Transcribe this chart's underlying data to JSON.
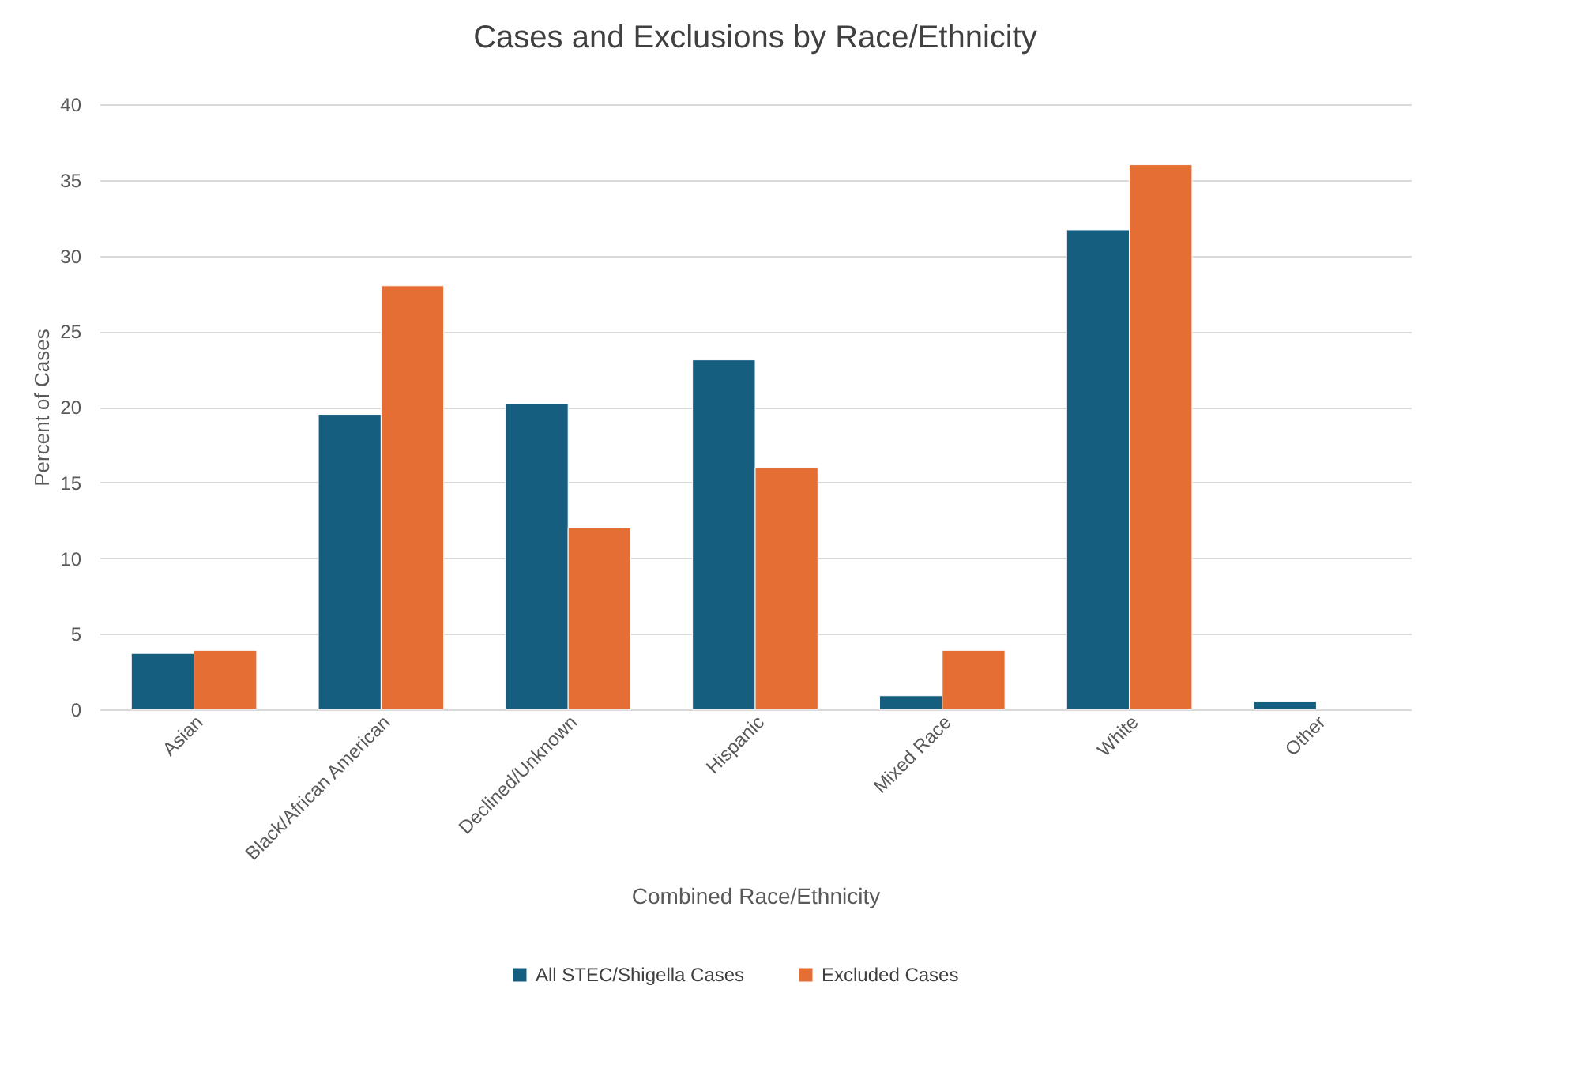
{
  "chart_data": {
    "type": "bar",
    "title": "Cases and Exclusions by Race/Ethnicity",
    "xlabel": "Combined Race/Ethnicity",
    "ylabel": "Percent of Cases",
    "categories": [
      "Asian",
      "Black/African American",
      "Declined/Unknown",
      "Hispanic",
      "Mixed Race",
      "White",
      "Other"
    ],
    "series": [
      {
        "name": "All STEC/Shigella Cases",
        "color": "#165e80",
        "values": [
          3.7,
          19.5,
          20.2,
          23.1,
          0.9,
          31.7,
          0.5
        ]
      },
      {
        "name": "Excluded Cases",
        "color": "#e46e33",
        "values": [
          3.9,
          28.0,
          12.0,
          16.0,
          3.9,
          36.0,
          null
        ]
      }
    ],
    "ylim": [
      0,
      40
    ],
    "yticks": [
      0,
      5,
      10,
      15,
      20,
      25,
      30,
      35,
      40
    ],
    "grid": "y",
    "legend": "bottom"
  }
}
